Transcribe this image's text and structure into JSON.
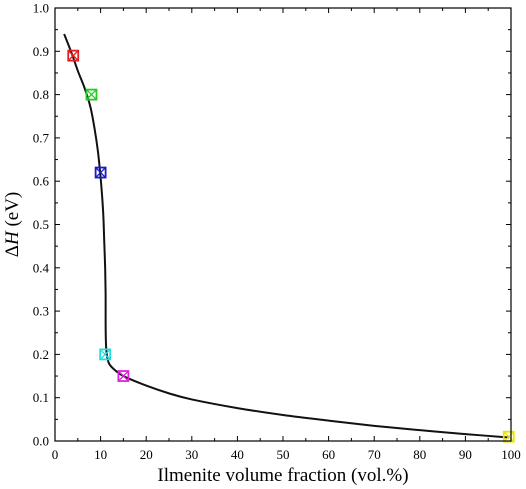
{
  "chart_data": {
    "type": "line",
    "title": "",
    "xlabel": "Ilmenite volume fraction (vol.%)",
    "ylabel_delta": "Δ",
    "ylabel_symbol": "H",
    "ylabel_unit": " (eV)",
    "xlim": [
      0,
      100
    ],
    "ylim": [
      0.0,
      1.0
    ],
    "x_ticks": [
      0,
      10,
      20,
      30,
      40,
      50,
      60,
      70,
      80,
      90,
      100
    ],
    "y_ticks": [
      0.0,
      0.1,
      0.2,
      0.3,
      0.4,
      0.5,
      0.6,
      0.7,
      0.8,
      0.9,
      1.0
    ],
    "x_tick_labels": [
      "0",
      "10",
      "20",
      "30",
      "40",
      "50",
      "60",
      "70",
      "80",
      "90",
      "100"
    ],
    "y_tick_labels": [
      "0.0",
      "0.1",
      "0.2",
      "0.3",
      "0.4",
      "0.5",
      "0.6",
      "0.7",
      "0.8",
      "0.9",
      "1.0"
    ],
    "grid": false,
    "curve": {
      "color": "#111111",
      "points": [
        [
          2.0,
          0.94
        ],
        [
          3.5,
          0.9
        ],
        [
          5.0,
          0.855
        ],
        [
          6.5,
          0.815
        ],
        [
          7.8,
          0.77
        ],
        [
          8.7,
          0.72
        ],
        [
          9.4,
          0.67
        ],
        [
          9.9,
          0.62
        ],
        [
          10.3,
          0.57
        ],
        [
          10.6,
          0.52
        ],
        [
          10.8,
          0.46
        ],
        [
          11.0,
          0.4
        ],
        [
          11.1,
          0.34
        ],
        [
          11.1,
          0.28
        ],
        [
          11.15,
          0.235
        ],
        [
          11.3,
          0.205
        ],
        [
          11.8,
          0.18
        ],
        [
          13.0,
          0.165
        ],
        [
          15.0,
          0.15
        ],
        [
          20.0,
          0.128
        ],
        [
          25.0,
          0.11
        ],
        [
          30.0,
          0.096
        ],
        [
          40.0,
          0.076
        ],
        [
          50.0,
          0.06
        ],
        [
          60.0,
          0.047
        ],
        [
          70.0,
          0.035
        ],
        [
          80.0,
          0.025
        ],
        [
          90.0,
          0.016
        ],
        [
          99.5,
          0.008
        ]
      ]
    },
    "markers": [
      {
        "x": 4,
        "y": 0.89,
        "color": "#e02020"
      },
      {
        "x": 8,
        "y": 0.8,
        "color": "#22cc22"
      },
      {
        "x": 10,
        "y": 0.62,
        "color": "#1a1acc"
      },
      {
        "x": 11,
        "y": 0.2,
        "color": "#22dddd"
      },
      {
        "x": 15,
        "y": 0.15,
        "color": "#dd22dd"
      },
      {
        "x": 99.5,
        "y": 0.01,
        "color": "#e6e600"
      }
    ]
  }
}
